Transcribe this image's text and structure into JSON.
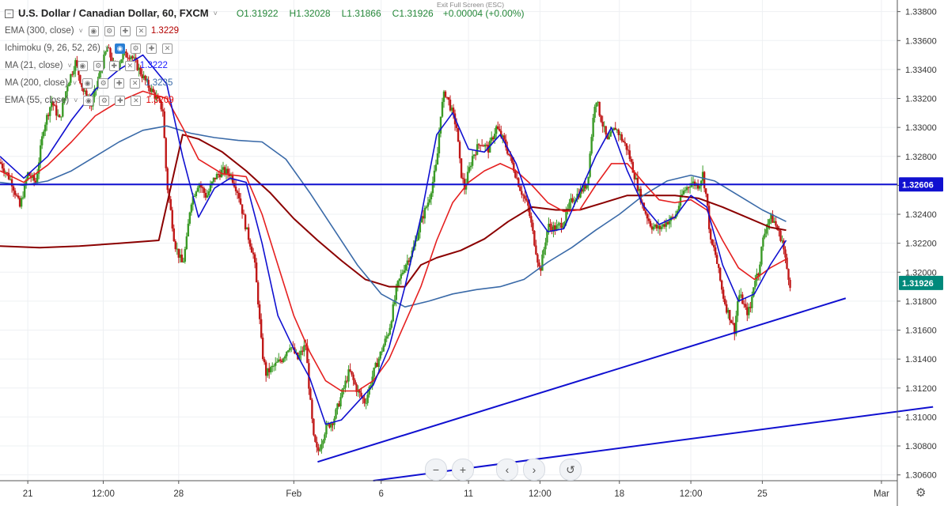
{
  "header": {
    "symbol": "U.S. Dollar / Canadian Dollar, 60, FXCM",
    "open": "O1.31922",
    "high": "H1.32028",
    "low": "L1.31866",
    "close": "C1.31926",
    "change": "+0.00004 (+0.00%)",
    "exit_fullscreen": "Exit Full Screen (ESC)"
  },
  "indicators": [
    {
      "name": "EMA (300, close)",
      "value": "1.3229",
      "color": "#b30000"
    },
    {
      "name": "Ichimoku (9, 26, 52, 26)",
      "value": "",
      "color": "#555555"
    },
    {
      "name": "MA (21, close)",
      "value": "1.3222",
      "color": "#1a1aff"
    },
    {
      "name": "MA (200, close)",
      "value": "1.3235",
      "color": "#3a6aa8"
    },
    {
      "name": "EMA (55, close)",
      "value": "1.3209",
      "color": "#e00000"
    }
  ],
  "colors": {
    "up_candle": "#3a9a26",
    "down_candle": "#c01818",
    "hline": "#1010d0",
    "price_tag": "#00897b",
    "ema300": "#8b0000",
    "ma200": "#3a6aa8",
    "ema55": "#e52020",
    "ma21": "#1010d0"
  },
  "chart_data": {
    "type": "candlestick",
    "title": "U.S. Dollar / Canadian Dollar, 60, FXCM",
    "ylim": [
      1.3056,
      1.3388
    ],
    "y_ticks": [
      1.306,
      1.308,
      1.31,
      1.312,
      1.314,
      1.316,
      1.318,
      1.32,
      1.322,
      1.324,
      1.326,
      1.328,
      1.33,
      1.332,
      1.334,
      1.336,
      1.338
    ],
    "y_tick_labels": [
      "1.30600",
      "1.30800",
      "1.31000",
      "1.31200",
      "1.31400",
      "1.31600",
      "1.31800",
      "1.32000",
      "1.32200",
      "1.32400",
      "1.32600",
      "1.32800",
      "1.33000",
      "1.33200",
      "1.33400",
      "1.33600",
      "1.33800"
    ],
    "x_ticks": [
      {
        "label": "21",
        "t": 0.7
      },
      {
        "label": "12:00",
        "t": 2.6
      },
      {
        "label": "28",
        "t": 4.5
      },
      {
        "label": "Feb",
        "t": 7.4
      },
      {
        "label": "6",
        "t": 9.6
      },
      {
        "label": "11",
        "t": 11.8
      },
      {
        "label": "12:00",
        "t": 13.6
      },
      {
        "label": "18",
        "t": 15.6
      },
      {
        "label": "12:00",
        "t": 17.4
      },
      {
        "label": "25",
        "t": 19.2
      },
      {
        "label": "Mar",
        "t": 22.2
      }
    ],
    "x_range": [
      0,
      22.6
    ],
    "last_t": 18.95,
    "price_path": [
      [
        0,
        1.3276
      ],
      [
        0.3,
        1.3262
      ],
      [
        0.5,
        1.3245
      ],
      [
        0.7,
        1.3268
      ],
      [
        0.9,
        1.3262
      ],
      [
        1.1,
        1.33
      ],
      [
        1.3,
        1.3318
      ],
      [
        1.5,
        1.3305
      ],
      [
        1.7,
        1.333
      ],
      [
        1.9,
        1.3345
      ],
      [
        2.1,
        1.3325
      ],
      [
        2.3,
        1.3315
      ],
      [
        2.5,
        1.3336
      ],
      [
        2.7,
        1.3355
      ],
      [
        2.9,
        1.334
      ],
      [
        3.1,
        1.335
      ],
      [
        3.3,
        1.335
      ],
      [
        3.5,
        1.334
      ],
      [
        3.7,
        1.333
      ],
      [
        3.9,
        1.3322
      ],
      [
        4.1,
        1.3312
      ],
      [
        4.2,
        1.3262
      ],
      [
        4.3,
        1.3242
      ],
      [
        4.4,
        1.322
      ],
      [
        4.5,
        1.3212
      ],
      [
        4.6,
        1.3205
      ],
      [
        4.7,
        1.3222
      ],
      [
        4.8,
        1.3248
      ],
      [
        5.0,
        1.3262
      ],
      [
        5.2,
        1.3252
      ],
      [
        5.4,
        1.3265
      ],
      [
        5.6,
        1.327
      ],
      [
        5.8,
        1.3268
      ],
      [
        6.0,
        1.3255
      ],
      [
        6.2,
        1.323
      ],
      [
        6.4,
        1.321
      ],
      [
        6.5,
        1.318
      ],
      [
        6.6,
        1.3145
      ],
      [
        6.7,
        1.313
      ],
      [
        6.9,
        1.3135
      ],
      [
        7.1,
        1.314
      ],
      [
        7.3,
        1.315
      ],
      [
        7.5,
        1.314
      ],
      [
        7.7,
        1.315
      ],
      [
        7.8,
        1.3115
      ],
      [
        7.9,
        1.3085
      ],
      [
        8.0,
        1.3075
      ],
      [
        8.2,
        1.3092
      ],
      [
        8.4,
        1.3098
      ],
      [
        8.6,
        1.3115
      ],
      [
        8.8,
        1.3132
      ],
      [
        9.0,
        1.3118
      ],
      [
        9.2,
        1.311
      ],
      [
        9.4,
        1.313
      ],
      [
        9.6,
        1.3145
      ],
      [
        9.8,
        1.316
      ],
      [
        10.0,
        1.319
      ],
      [
        10.2,
        1.3205
      ],
      [
        10.4,
        1.3215
      ],
      [
        10.6,
        1.3235
      ],
      [
        10.8,
        1.325
      ],
      [
        11.0,
        1.3275
      ],
      [
        11.1,
        1.331
      ],
      [
        11.2,
        1.3325
      ],
      [
        11.3,
        1.3318
      ],
      [
        11.5,
        1.33
      ],
      [
        11.6,
        1.327
      ],
      [
        11.7,
        1.3258
      ],
      [
        11.9,
        1.328
      ],
      [
        12.1,
        1.329
      ],
      [
        12.3,
        1.3285
      ],
      [
        12.5,
        1.33
      ],
      [
        12.7,
        1.329
      ],
      [
        12.9,
        1.3275
      ],
      [
        13.1,
        1.3258
      ],
      [
        13.3,
        1.3245
      ],
      [
        13.5,
        1.3215
      ],
      [
        13.6,
        1.32
      ],
      [
        13.8,
        1.3232
      ],
      [
        14.0,
        1.323
      ],
      [
        14.2,
        1.3235
      ],
      [
        14.4,
        1.325
      ],
      [
        14.6,
        1.3255
      ],
      [
        14.8,
        1.3262
      ],
      [
        14.9,
        1.3295
      ],
      [
        15.0,
        1.3322
      ],
      [
        15.1,
        1.331
      ],
      [
        15.3,
        1.329
      ],
      [
        15.5,
        1.33
      ],
      [
        15.6,
        1.3295
      ],
      [
        15.8,
        1.3285
      ],
      [
        16.0,
        1.3265
      ],
      [
        16.2,
        1.3245
      ],
      [
        16.4,
        1.3232
      ],
      [
        16.6,
        1.323
      ],
      [
        16.8,
        1.3235
      ],
      [
        17.0,
        1.3238
      ],
      [
        17.2,
        1.3255
      ],
      [
        17.4,
        1.3262
      ],
      [
        17.6,
        1.326
      ],
      [
        17.7,
        1.3268
      ],
      [
        17.8,
        1.325
      ],
      [
        17.9,
        1.322
      ],
      [
        18.0,
        1.3215
      ],
      [
        18.1,
        1.32
      ],
      [
        18.2,
        1.3185
      ],
      [
        18.3,
        1.3175
      ],
      [
        18.4,
        1.3168
      ],
      [
        18.5,
        1.316
      ],
      [
        18.6,
        1.3185
      ],
      [
        18.7,
        1.318
      ],
      [
        18.8,
        1.3172
      ],
      [
        18.9,
        1.3175
      ],
      [
        19.0,
        1.3195
      ],
      [
        19.1,
        1.32
      ],
      [
        19.2,
        1.322
      ],
      [
        19.3,
        1.3232
      ],
      [
        19.4,
        1.3238
      ],
      [
        19.5,
        1.3235
      ],
      [
        19.6,
        1.3228
      ],
      [
        19.7,
        1.3222
      ],
      [
        19.8,
        1.3205
      ],
      [
        19.9,
        1.3192
      ]
    ],
    "series": [
      {
        "name": "EMA (300, close)",
        "color": "#8b0000",
        "width": 2.0,
        "points": [
          [
            0,
            1.3218
          ],
          [
            1,
            1.3217
          ],
          [
            2,
            1.3218
          ],
          [
            3,
            1.322
          ],
          [
            4,
            1.3222
          ],
          [
            4.6,
            1.3295
          ],
          [
            5,
            1.3292
          ],
          [
            5.6,
            1.3283
          ],
          [
            6.2,
            1.327
          ],
          [
            6.8,
            1.3255
          ],
          [
            7.4,
            1.3237
          ],
          [
            8,
            1.3222
          ],
          [
            8.6,
            1.3208
          ],
          [
            9.2,
            1.3195
          ],
          [
            9.8,
            1.319
          ],
          [
            10.2,
            1.319
          ],
          [
            10.6,
            1.3205
          ],
          [
            11,
            1.321
          ],
          [
            11.6,
            1.3215
          ],
          [
            12.2,
            1.3223
          ],
          [
            12.8,
            1.3235
          ],
          [
            13.4,
            1.3245
          ],
          [
            14,
            1.3243
          ],
          [
            14.6,
            1.3243
          ],
          [
            15.2,
            1.3248
          ],
          [
            15.8,
            1.3253
          ],
          [
            16.4,
            1.3253
          ],
          [
            17,
            1.3253
          ],
          [
            17.6,
            1.3251
          ],
          [
            18.2,
            1.3245
          ],
          [
            18.8,
            1.3238
          ],
          [
            19.4,
            1.3231
          ],
          [
            19.8,
            1.3229
          ]
        ]
      },
      {
        "name": "MA (200, close)",
        "color": "#3a6aa8",
        "width": 1.6,
        "points": [
          [
            0,
            1.3262
          ],
          [
            0.6,
            1.326
          ],
          [
            1.2,
            1.3263
          ],
          [
            1.8,
            1.327
          ],
          [
            2.4,
            1.328
          ],
          [
            3,
            1.329
          ],
          [
            3.6,
            1.3298
          ],
          [
            4.2,
            1.3301
          ],
          [
            4.8,
            1.3296
          ],
          [
            5.4,
            1.3293
          ],
          [
            6,
            1.3291
          ],
          [
            6.6,
            1.329
          ],
          [
            7.2,
            1.3278
          ],
          [
            7.8,
            1.3255
          ],
          [
            8.4,
            1.323
          ],
          [
            9,
            1.3205
          ],
          [
            9.6,
            1.3185
          ],
          [
            10.2,
            1.3176
          ],
          [
            10.8,
            1.318
          ],
          [
            11.4,
            1.3185
          ],
          [
            12,
            1.3188
          ],
          [
            12.6,
            1.319
          ],
          [
            13.2,
            1.3195
          ],
          [
            13.8,
            1.3207
          ],
          [
            14.4,
            1.3217
          ],
          [
            15,
            1.3229
          ],
          [
            15.6,
            1.324
          ],
          [
            16.2,
            1.3253
          ],
          [
            16.8,
            1.3263
          ],
          [
            17.4,
            1.3267
          ],
          [
            18,
            1.3263
          ],
          [
            18.6,
            1.3253
          ],
          [
            19.2,
            1.3243
          ],
          [
            19.8,
            1.3235
          ]
        ]
      },
      {
        "name": "EMA (55, close)",
        "color": "#e52020",
        "width": 1.6,
        "points": [
          [
            0,
            1.327
          ],
          [
            0.6,
            1.3262
          ],
          [
            1.2,
            1.3274
          ],
          [
            1.8,
            1.329
          ],
          [
            2.4,
            1.3308
          ],
          [
            3,
            1.3318
          ],
          [
            3.6,
            1.3325
          ],
          [
            4.2,
            1.332
          ],
          [
            4.6,
            1.33
          ],
          [
            5,
            1.3278
          ],
          [
            5.6,
            1.3268
          ],
          [
            6.2,
            1.3266
          ],
          [
            6.6,
            1.324
          ],
          [
            7,
            1.3205
          ],
          [
            7.4,
            1.317
          ],
          [
            7.8,
            1.3145
          ],
          [
            8.2,
            1.3125
          ],
          [
            8.6,
            1.3118
          ],
          [
            9,
            1.3118
          ],
          [
            9.4,
            1.3125
          ],
          [
            9.8,
            1.314
          ],
          [
            10.2,
            1.3165
          ],
          [
            10.6,
            1.319
          ],
          [
            11,
            1.3222
          ],
          [
            11.4,
            1.3248
          ],
          [
            11.8,
            1.3262
          ],
          [
            12.2,
            1.327
          ],
          [
            12.6,
            1.3275
          ],
          [
            13,
            1.327
          ],
          [
            13.4,
            1.326
          ],
          [
            13.8,
            1.3248
          ],
          [
            14.2,
            1.3242
          ],
          [
            14.6,
            1.3243
          ],
          [
            15,
            1.326
          ],
          [
            15.4,
            1.3275
          ],
          [
            15.8,
            1.3275
          ],
          [
            16.2,
            1.3262
          ],
          [
            16.6,
            1.325
          ],
          [
            17,
            1.3248
          ],
          [
            17.4,
            1.325
          ],
          [
            17.8,
            1.3243
          ],
          [
            18.2,
            1.3222
          ],
          [
            18.6,
            1.3203
          ],
          [
            19,
            1.3195
          ],
          [
            19.4,
            1.3203
          ],
          [
            19.8,
            1.3209
          ]
        ]
      },
      {
        "name": "MA (21, close)",
        "color": "#1010d0",
        "width": 1.6,
        "points": [
          [
            0,
            1.328
          ],
          [
            0.6,
            1.3265
          ],
          [
            1.2,
            1.328
          ],
          [
            1.8,
            1.3305
          ],
          [
            2.4,
            1.3326
          ],
          [
            3,
            1.334
          ],
          [
            3.6,
            1.335
          ],
          [
            4.2,
            1.333
          ],
          [
            4.6,
            1.328
          ],
          [
            5,
            1.3238
          ],
          [
            5.4,
            1.3258
          ],
          [
            5.8,
            1.3265
          ],
          [
            6.2,
            1.3262
          ],
          [
            6.6,
            1.322
          ],
          [
            7,
            1.317
          ],
          [
            7.4,
            1.3147
          ],
          [
            7.8,
            1.3127
          ],
          [
            8.2,
            1.3095
          ],
          [
            8.6,
            1.3098
          ],
          [
            9,
            1.311
          ],
          [
            9.4,
            1.3122
          ],
          [
            9.8,
            1.3148
          ],
          [
            10.2,
            1.319
          ],
          [
            10.6,
            1.3238
          ],
          [
            11,
            1.3295
          ],
          [
            11.4,
            1.331
          ],
          [
            11.8,
            1.3285
          ],
          [
            12.2,
            1.3283
          ],
          [
            12.6,
            1.3295
          ],
          [
            13,
            1.3275
          ],
          [
            13.4,
            1.3243
          ],
          [
            13.8,
            1.3228
          ],
          [
            14.2,
            1.323
          ],
          [
            14.6,
            1.3255
          ],
          [
            15,
            1.328
          ],
          [
            15.4,
            1.33
          ],
          [
            15.8,
            1.327
          ],
          [
            16.2,
            1.3246
          ],
          [
            16.6,
            1.3233
          ],
          [
            17,
            1.3238
          ],
          [
            17.4,
            1.3253
          ],
          [
            17.8,
            1.3245
          ],
          [
            18.2,
            1.3205
          ],
          [
            18.6,
            1.318
          ],
          [
            19,
            1.3185
          ],
          [
            19.4,
            1.3205
          ],
          [
            19.8,
            1.3222
          ]
        ]
      }
    ],
    "horizontal_line": {
      "value": 1.32606,
      "label": "1.32606"
    },
    "trendlines": [
      {
        "points": [
          [
            8.0,
            1.3069
          ],
          [
            21.3,
            1.3182
          ]
        ]
      },
      {
        "points": [
          [
            9.4,
            1.3056
          ],
          [
            23.5,
            1.3107
          ]
        ]
      }
    ],
    "last_price": {
      "value": 1.31926,
      "label": "1.31926"
    },
    "candle_seed": 7
  }
}
